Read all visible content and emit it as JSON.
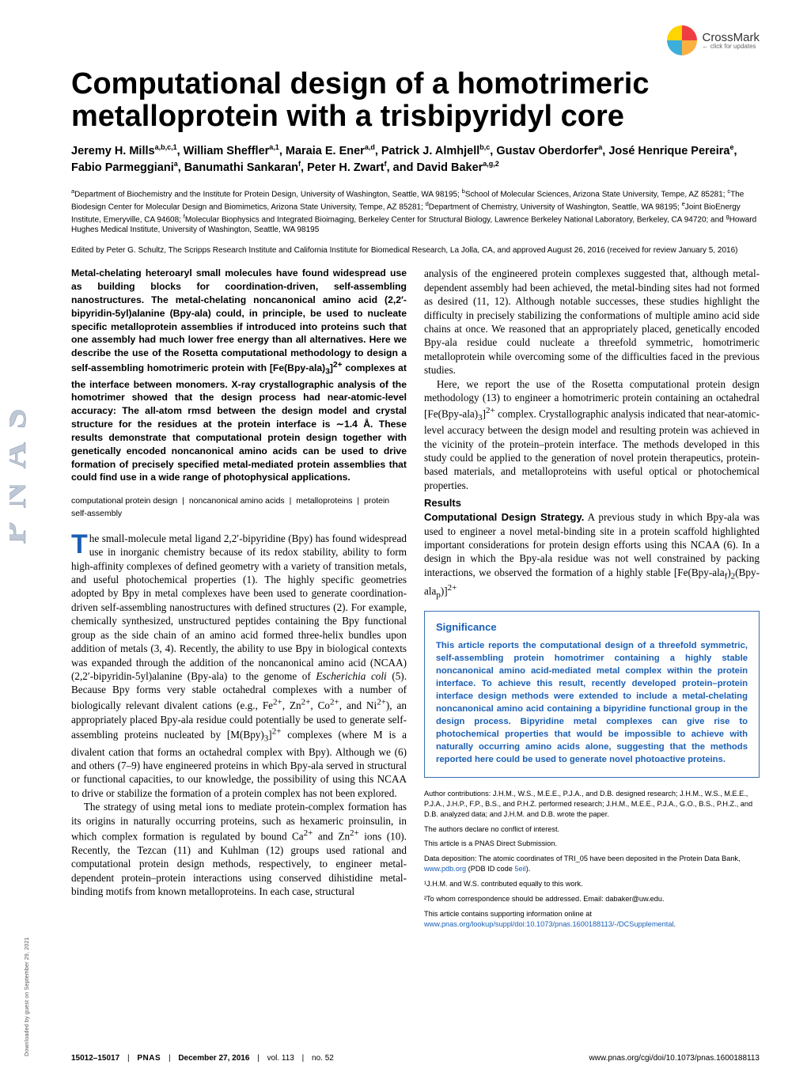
{
  "crossmark": {
    "label": "CrossMark",
    "sub": "← click for updates"
  },
  "title": "Computational design of a homotrimeric metalloprotein with a trisbipyridyl core",
  "authors_html": "Jeremy H. Mills<sup>a,b,c,1</sup>, William Sheffler<sup>a,1</sup>, Maraia E. Ener<sup>a,d</sup>, Patrick J. Almhjell<sup>b,c</sup>, Gustav Oberdorfer<sup>a</sup>, José Henrique Pereira<sup>e</sup>, Fabio Parmeggiani<sup>a</sup>, Banumathi Sankaran<sup>f</sup>, Peter H. Zwart<sup>f</sup>, and David Baker<sup>a,g,2</sup>",
  "affiliations_html": "<sup>a</sup>Department of Biochemistry and the Institute for Protein Design, University of Washington, Seattle, WA 98195; <sup>b</sup>School of Molecular Sciences, Arizona State University, Tempe, AZ 85281; <sup>c</sup>The Biodesign Center for Molecular Design and Biomimetics, Arizona State University, Tempe, AZ 85281; <sup>d</sup>Department of Chemistry, University of Washington, Seattle, WA 98195; <sup>e</sup>Joint BioEnergy Institute, Emeryville, CA 94608; <sup>f</sup>Molecular Biophysics and Integrated Bioimaging, Berkeley Center for Structural Biology, Lawrence Berkeley National Laboratory, Berkeley, CA 94720; and <sup>g</sup>Howard Hughes Medical Institute, University of Washington, Seattle, WA 98195",
  "edited": "Edited by Peter G. Schultz, The Scripps Research Institute and California Institute for Biomedical Research, La Jolla, CA, and approved August 26, 2016 (received for review January 5, 2016)",
  "abstract_html": "Metal-chelating heteroaryl small molecules have found widespread use as building blocks for coordination-driven, self-assembling nanostructures. The metal-chelating noncanonical amino acid (2,2′-bipyridin-5yl)alanine (Bpy-ala) could, in principle, be used to nucleate specific metalloprotein assemblies if introduced into proteins such that one assembly had much lower free energy than all alternatives. Here we describe the use of the Rosetta computational methodology to design a self-assembling homotrimeric protein with [Fe(Bpy-ala)<sub>3</sub>]<sup>2+</sup> complexes at the interface between monomers. X-ray crystallographic analysis of the homotrimer showed that the design process had near-atomic-level accuracy: The all-atom rmsd between the design model and crystal structure for the residues at the protein interface is ∼1.4 Å. These results demonstrate that computational protein design together with genetically encoded noncanonical amino acids can be used to drive formation of precisely specified metal-mediated protein assemblies that could find use in a wide range of photophysical applications.",
  "keywords": [
    "computational protein design",
    "noncanonical amino acids",
    "metalloproteins",
    "protein self-assembly"
  ],
  "intro_dropcap": "T",
  "intro_first_html": "he small-molecule metal ligand 2,2′-bipyridine (Bpy) has found widespread use in inorganic chemistry because of its redox stability, ability to form high-affinity complexes of defined geometry with a variety of transition metals, and useful photochemical properties (1). The highly specific geometries adopted by Bpy in metal complexes have been used to generate coordination-driven self-assembling nanostructures with defined structures (2). For example, chemically synthesized, unstructured peptides containing the Bpy functional group as the side chain of an amino acid formed three-helix bundles upon addition of metals (3, 4). Recently, the ability to use Bpy in biological contexts was expanded through the addition of the noncanonical amino acid (NCAA) (2,2′-bipyridin-5yl)alanine (Bpy-ala) to the genome of <i>Escherichia coli</i> (5). Because Bpy forms very stable octahedral complexes with a number of biologically relevant divalent cations (e.g., Fe<sup>2+</sup>, Zn<sup>2+</sup>, Co<sup>2+</sup>, and Ni<sup>2+</sup>), an appropriately placed Bpy-ala residue could potentially be used to generate self-assembling proteins nucleated by [M(Bpy)<sub>3</sub>]<sup>2+</sup> complexes (where M is a divalent cation that forms an octahedral complex with Bpy). Although we (6) and others (7–9) have engineered proteins in which Bpy-ala served in structural or functional capacities, to our knowledge, the possibility of using this NCAA to drive or stabilize the formation of a protein complex has not been explored.",
  "intro_second_html": "The strategy of using metal ions to mediate protein-complex formation has its origins in naturally occurring proteins, such as hexameric proinsulin, in which complex formation is regulated by bound Ca<sup>2+</sup> and Zn<sup>2+</sup> ions (10). Recently, the Tezcan (11) and Kuhlman (12) groups used rational and computational protein design methods, respectively, to engineer metal-dependent protein–protein interactions using conserved dihistidine metal-binding motifs from known metalloproteins. In each case, structural",
  "right_top_html": "analysis of the engineered protein complexes suggested that, although metal-dependent assembly had been achieved, the metal-binding sites had not formed as desired (11, 12). Although notable successes, these studies highlight the difficulty in precisely stabilizing the conformations of multiple amino acid side chains at once. We reasoned that an appropriately placed, genetically encoded Bpy-ala residue could nucleate a threefold symmetric, homotrimeric metalloprotein while overcoming some of the difficulties faced in the previous studies.",
  "right_para2_html": "Here, we report the use of the Rosetta computational protein design methodology (13) to engineer a homotrimeric protein containing an octahedral [Fe(Bpy-ala)<sub>3</sub>]<sup>2+</sup> complex. Crystallographic analysis indicated that near-atomic-level accuracy between the design model and resulting protein was achieved in the vicinity of the protein–protein interface. The methods developed in this study could be applied to the generation of novel protein therapeutics, protein-based materials, and metalloproteins with useful optical or photochemical properties.",
  "results_head": "Results",
  "results_para_html": "<span class='run-in'>Computational Design Strategy.</span> A previous study in which Bpy-ala was used to engineer a novel metal-binding site in a protein scaffold highlighted important considerations for protein design efforts using this NCAA (6). In a design in which the Bpy-ala residue was not well constrained by packing interactions, we observed the formation of a highly stable [Fe(Bpy-ala<sub>f</sub>)<sub>2</sub>(Bpy-ala<sub>p</sub>)]<sup>2+</sup>",
  "significance": {
    "title": "Significance",
    "body": "This article reports the computational design of a threefold symmetric, self-assembling protein homotrimer containing a highly stable noncanonical amino acid-mediated metal complex within the protein interface. To achieve this result, recently developed protein–protein interface design methods were extended to include a metal-chelating noncanonical amino acid containing a bipyridine functional group in the design process. Bipyridine metal complexes can give rise to photochemical properties that would be impossible to achieve with naturally occurring amino acids alone, suggesting that the methods reported here could be used to generate novel photoactive proteins."
  },
  "finemeta": {
    "contrib": "Author contributions: J.H.M., W.S., M.E.E., P.J.A., and D.B. designed research; J.H.M., W.S., M.E.E., P.J.A., J.H.P., F.P., B.S., and P.H.Z. performed research; J.H.M., M.E.E., P.J.A., G.O., B.S., P.H.Z., and D.B. analyzed data; and J.H.M. and D.B. wrote the paper.",
    "coi": "The authors declare no conflict of interest.",
    "direct": "This article is a PNAS Direct Submission.",
    "deposition_html": "Data deposition: The atomic coordinates of TRI_05 have been deposited in the Protein Data Bank, <a href='#'>www.pdb.org</a> (PDB ID code <a href='#'>5eil</a>).",
    "eq": "¹J.H.M. and W.S. contributed equally to this work.",
    "corr": "²To whom correspondence should be addressed. Email: dabaker@uw.edu.",
    "si_html": "This article contains supporting information online at <a href='#'>www.pnas.org/lookup/suppl/doi:10.1073/pnas.1600188113/-/DCSupplemental</a>."
  },
  "footer": {
    "pages": "15012–15017",
    "journal": "PNAS",
    "date": "December 27, 2016",
    "vol": "vol. 113",
    "no": "no. 52",
    "doi": "www.pnas.org/cgi/doi/10.1073/pnas.1600188113"
  },
  "download_note": "Downloaded by guest on September 29, 2021",
  "colors": {
    "link": "#1a5fb4",
    "sig_border": "#3b6fb6"
  }
}
